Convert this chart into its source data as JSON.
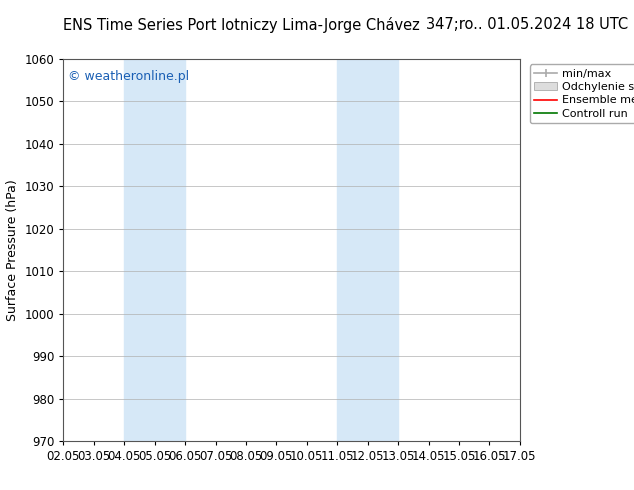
{
  "title_left": "ENS Time Series Port lotniczy Lima-Jorge Chávez",
  "title_right": "347;ro.. 01.05.2024 18 UTC",
  "ylabel": "Surface Pressure (hPa)",
  "xlim": [
    0,
    15
  ],
  "ylim": [
    970,
    1060
  ],
  "yticks": [
    970,
    980,
    990,
    1000,
    1010,
    1020,
    1030,
    1040,
    1050,
    1060
  ],
  "xtick_positions": [
    0,
    1,
    2,
    3,
    4,
    5,
    6,
    7,
    8,
    9,
    10,
    11,
    12,
    13,
    14,
    15
  ],
  "xtick_labels": [
    "02.05",
    "03.05",
    "04.05",
    "05.05",
    "06.05",
    "07.05",
    "08.05",
    "09.05",
    "10.05",
    "11.05",
    "12.05",
    "13.05",
    "14.05",
    "15.05",
    "16.05",
    "17.05"
  ],
  "shaded_bands": [
    {
      "x_start": 2,
      "x_end": 4,
      "color": "#d6e8f7"
    },
    {
      "x_start": 9,
      "x_end": 11,
      "color": "#d6e8f7"
    }
  ],
  "watermark_text": "© weatheronline.pl",
  "watermark_color": "#1a5fb4",
  "background_color": "#ffffff",
  "plot_bg_color": "#ffffff",
  "grid_color": "#b0b0b0",
  "legend_items": [
    {
      "label": "min/max",
      "color": "#aaaaaa"
    },
    {
      "label": "Odchylenie standardowe",
      "color": "#cccccc"
    },
    {
      "label": "Ensemble mean run",
      "color": "#ff0000"
    },
    {
      "label": "Controll run",
      "color": "#007700"
    }
  ],
  "title_fontsize": 10.5,
  "ylabel_fontsize": 9,
  "tick_fontsize": 8.5,
  "legend_fontsize": 8,
  "watermark_fontsize": 9
}
